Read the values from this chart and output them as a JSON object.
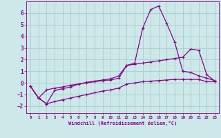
{
  "xlabel": "Windchill (Refroidissement éolien,°C)",
  "bg_color": "#cce8e8",
  "line_color": "#880088",
  "grid_color": "#aacccc",
  "xlim": [
    -0.5,
    23.5
  ],
  "ylim": [
    -2.6,
    7.0
  ],
  "xticks": [
    0,
    1,
    2,
    3,
    4,
    5,
    6,
    7,
    8,
    9,
    10,
    11,
    12,
    13,
    14,
    15,
    16,
    17,
    18,
    19,
    20,
    21,
    22,
    23
  ],
  "yticks": [
    -2,
    -1,
    0,
    1,
    2,
    3,
    4,
    5,
    6
  ],
  "line1_x": [
    0,
    1,
    2,
    3,
    4,
    5,
    6,
    7,
    8,
    9,
    10,
    11,
    12,
    13,
    14,
    15,
    16,
    17,
    18,
    19,
    20,
    21,
    22,
    23
  ],
  "line1_y": [
    -0.3,
    -1.3,
    -1.8,
    -0.65,
    -0.5,
    -0.35,
    -0.1,
    0.05,
    0.15,
    0.25,
    0.35,
    0.6,
    1.5,
    1.7,
    4.7,
    6.3,
    6.6,
    5.1,
    3.5,
    1.0,
    0.9,
    0.6,
    0.4,
    0.2
  ],
  "line2_x": [
    0,
    1,
    2,
    3,
    4,
    5,
    6,
    7,
    8,
    9,
    10,
    11,
    12,
    13,
    14,
    15,
    16,
    17,
    18,
    19,
    20,
    21,
    22,
    23
  ],
  "line2_y": [
    -0.3,
    -1.3,
    -0.6,
    -0.45,
    -0.35,
    -0.2,
    -0.1,
    0.0,
    0.1,
    0.2,
    0.25,
    0.4,
    1.5,
    1.6,
    1.7,
    1.8,
    1.9,
    2.0,
    2.1,
    2.2,
    2.9,
    2.8,
    0.7,
    0.15
  ],
  "line3_x": [
    0,
    1,
    2,
    3,
    4,
    5,
    6,
    7,
    8,
    9,
    10,
    11,
    12,
    13,
    14,
    15,
    16,
    17,
    18,
    19,
    20,
    21,
    22,
    23
  ],
  "line3_y": [
    -0.3,
    -1.3,
    -1.8,
    -1.6,
    -1.45,
    -1.3,
    -1.15,
    -1.0,
    -0.85,
    -0.7,
    -0.6,
    -0.45,
    -0.1,
    0.0,
    0.1,
    0.15,
    0.2,
    0.25,
    0.3,
    0.3,
    0.3,
    0.3,
    0.1,
    0.1
  ]
}
